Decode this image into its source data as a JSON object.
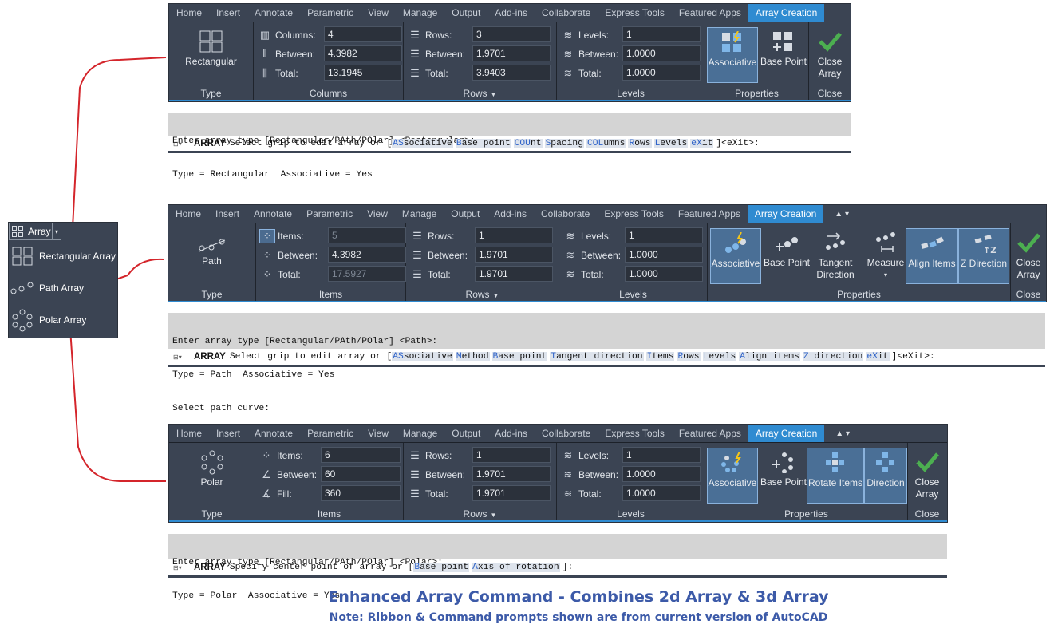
{
  "menu": {
    "button_label": "Array",
    "items": [
      {
        "label": "Rectangular Array",
        "icon": "rectangular-array-icon"
      },
      {
        "label": "Path Array",
        "icon": "path-array-icon"
      },
      {
        "label": "Polar Array",
        "icon": "polar-array-icon"
      }
    ]
  },
  "tabs_rect": [
    "Home",
    "Insert",
    "Annotate",
    "Parametric",
    "View",
    "Manage",
    "Output",
    "Add-ins",
    "Collaborate",
    "Express Tools",
    "Featured Apps",
    "Array Creation"
  ],
  "tabs_path": [
    "Home",
    "Insert",
    "Annotate",
    "Parametric",
    "View",
    "Manage",
    "Output",
    "Add-ins",
    "Collaborate",
    "Express Tools",
    "Featured Apps",
    "Array Creation"
  ],
  "tabs_polar": [
    "Home",
    "Insert",
    "Annotate",
    "Parametric",
    "View",
    "Manage",
    "Output",
    "Add-ins",
    "Collaborate",
    "Express Tools",
    "Featured Apps",
    "Array Creation"
  ],
  "tab_extra": "▲ ▾",
  "rect": {
    "type_label": "Rectangular",
    "type_panel": "Type",
    "columns": {
      "title": "Columns",
      "fields": [
        {
          "label": "Columns:",
          "value": "4"
        },
        {
          "label": "Between:",
          "value": "4.3982"
        },
        {
          "label": "Total:",
          "value": "13.1945"
        }
      ]
    },
    "rows": {
      "title": "Rows",
      "fields": [
        {
          "label": "Rows:",
          "value": "3"
        },
        {
          "label": "Between:",
          "value": "1.9701"
        },
        {
          "label": "Total:",
          "value": "3.9403"
        }
      ]
    },
    "levels": {
      "title": "Levels",
      "fields": [
        {
          "label": "Levels:",
          "value": "1"
        },
        {
          "label": "Between:",
          "value": "1.0000"
        },
        {
          "label": "Total:",
          "value": "1.0000"
        }
      ]
    },
    "properties": {
      "title": "Properties",
      "associative": "Associative",
      "base_point": "Base Point"
    },
    "close": {
      "title": "Close",
      "label1": "Close",
      "label2": "Array"
    },
    "cmd_hist": [
      "Enter array type [Rectangular/PAth/POlar] <Rectangular>:",
      "Type = Rectangular  Associative = Yes"
    ],
    "cmd_name": "ARRAY",
    "cmd_prompt": "Select grip to edit array or [",
    "cmd_keywords": [
      [
        "AS",
        "sociative"
      ],
      [
        "B",
        "ase point"
      ],
      [
        "COU",
        "nt"
      ],
      [
        "S",
        "pacing"
      ],
      [
        "COL",
        "umns"
      ],
      [
        "R",
        "ows"
      ],
      [
        "L",
        "evels"
      ],
      [
        "eX",
        "it"
      ]
    ],
    "cmd_tail": "]<eXit>:"
  },
  "path": {
    "type_label": "Path",
    "type_panel": "Type",
    "items": {
      "title": "Items",
      "fields": [
        {
          "label": "Items:",
          "value": "5"
        },
        {
          "label": "Between:",
          "value": "4.3982"
        },
        {
          "label": "Total:",
          "value": "17.5927"
        }
      ]
    },
    "rows": {
      "title": "Rows",
      "fields": [
        {
          "label": "Rows:",
          "value": "1"
        },
        {
          "label": "Between:",
          "value": "1.9701"
        },
        {
          "label": "Total:",
          "value": "1.9701"
        }
      ]
    },
    "levels": {
      "title": "Levels",
      "fields": [
        {
          "label": "Levels:",
          "value": "1"
        },
        {
          "label": "Between:",
          "value": "1.0000"
        },
        {
          "label": "Total:",
          "value": "1.0000"
        }
      ]
    },
    "properties": {
      "title": "Properties",
      "associative": "Associative",
      "base_point": "Base Point",
      "tangent1": "Tangent",
      "tangent2": "Direction",
      "measure": "Measure",
      "align": "Align Items",
      "zdir": "Z Direction"
    },
    "close": {
      "title": "Close",
      "label1": "Close",
      "label2": "Array"
    },
    "cmd_hist": [
      "Enter array type [Rectangular/PAth/POlar] <Path>:",
      "Type = Path  Associative = Yes",
      "Select path curve:"
    ],
    "cmd_name": "ARRAY",
    "cmd_prompt": "Select grip to edit array or [",
    "cmd_keywords": [
      [
        "AS",
        "sociative"
      ],
      [
        "M",
        "ethod"
      ],
      [
        "B",
        "ase point"
      ],
      [
        "T",
        "angent direction"
      ],
      [
        "I",
        "tems"
      ],
      [
        "R",
        "ows"
      ],
      [
        "L",
        "evels"
      ],
      [
        "A",
        "lign items"
      ],
      [
        "Z",
        " direction"
      ],
      [
        "eX",
        "it"
      ]
    ],
    "cmd_tail": "]<eXit>:"
  },
  "polar": {
    "type_label": "Polar",
    "type_panel": "Type",
    "items": {
      "title": "Items",
      "fields": [
        {
          "label": "Items:",
          "value": "6"
        },
        {
          "label": "Between:",
          "value": "60"
        },
        {
          "label": "Fill:",
          "value": "360"
        }
      ]
    },
    "rows": {
      "title": "Rows",
      "fields": [
        {
          "label": "Rows:",
          "value": "1"
        },
        {
          "label": "Between:",
          "value": "1.9701"
        },
        {
          "label": "Total:",
          "value": "1.9701"
        }
      ]
    },
    "levels": {
      "title": "Levels",
      "fields": [
        {
          "label": "Levels:",
          "value": "1"
        },
        {
          "label": "Between:",
          "value": "1.0000"
        },
        {
          "label": "Total:",
          "value": "1.0000"
        }
      ]
    },
    "properties": {
      "title": "Properties",
      "associative": "Associative",
      "base_point": "Base Point",
      "rotate": "Rotate Items",
      "direction": "Direction"
    },
    "close": {
      "title": "Close",
      "label1": "Close",
      "label2": "Array"
    },
    "cmd_hist": [
      "Enter array type [Rectangular/PAth/POlar] <Polar>:",
      "Type = Polar  Associative = Yes"
    ],
    "cmd_name": "ARRAY",
    "cmd_prompt": "Specify center point of array or [",
    "cmd_keywords": [
      [
        "B",
        "ase point"
      ],
      [
        "A",
        "xis of rotation"
      ]
    ],
    "cmd_tail": "]:"
  },
  "caption": {
    "title": "Enhanced Array Command - Combines 2d Array & 3d Array",
    "note": "Note: Ribbon & Command prompts shown are from current version of AutoCAD"
  },
  "colors": {
    "ribbon_bg": "#3b4453",
    "active_tab": "#2f8bd1",
    "connector": "#d4252b",
    "caption": "#3c5aa8",
    "check": "#4caf50"
  }
}
